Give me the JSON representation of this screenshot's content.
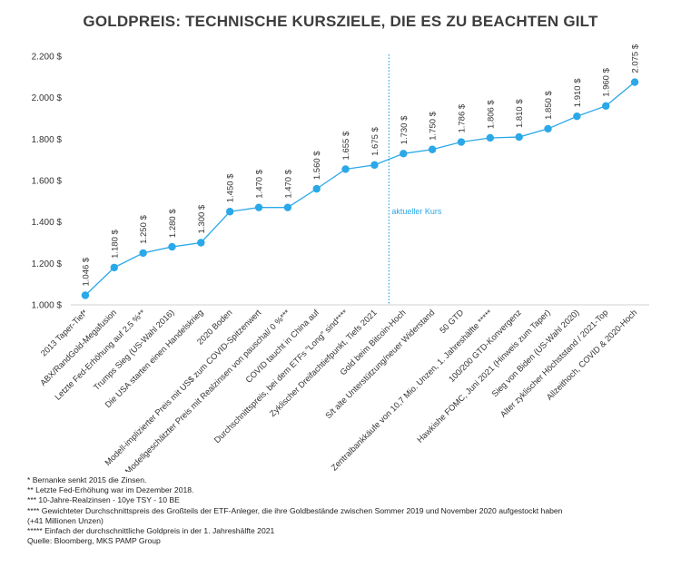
{
  "chart_data": {
    "type": "line",
    "title": "GOLDPREIS: TECHNISCHE KURSZIELE, DIE ES ZU BEACHTEN GILT",
    "xlabel": "",
    "ylabel": "",
    "ylim": [
      1000,
      2200
    ],
    "yticks": [
      1000,
      1200,
      1400,
      1600,
      1800,
      2000,
      2200
    ],
    "ytick_labels": [
      "1.000 $",
      "1.200 $",
      "1.400 $",
      "1.600 $",
      "1.800 $",
      "2.000 $",
      "2.200 $"
    ],
    "grid": false,
    "line_color": "#2aa8e8",
    "categories": [
      "2013 Taper-Tief*",
      "ABX/RandGold-Megafusion",
      "Letzte Fed-Erhöhung auf 2,5 %**",
      "Trumps Sieg (US-Wahl 2016)",
      "Die USA starten einen Handelskrieg",
      "2020 Boden",
      "Modell-implizierter Preis mit US$ zum COVID-Spitzenwert",
      "Modellgeschätzter Preis mit Realzinsen von pauschal/ 0 %***",
      "COVID taucht in China auf",
      "Durchschnittspreis, bei dem ETFs \"Long\" sind****",
      "Zyklischer Dreifachtiefpunkt, Tiefs 2021",
      "Gold beim Bitcoin-Hoch",
      "S/t alte Unterstützung/neuer Widerstand",
      "50 GTD",
      "Zentralbankkäufe von 10,7 Mio. Unzen, 1. Jahreshälfte *****",
      "100/200 GTD-Konvergenz",
      "Hawkishe FOMC, Juni 2021 (Hinweis zum Taper)",
      "Sieg von Biden (US-Wahl 2020)",
      "Alter zyklischer Höchststand / 2021-Top",
      "Allzeithoch, COVID & 2020-Hoch"
    ],
    "values": [
      1046,
      1180,
      1250,
      1280,
      1300,
      1450,
      1470,
      1470,
      1560,
      1655,
      1675,
      1730,
      1750,
      1786,
      1806,
      1810,
      1850,
      1910,
      1960,
      2075
    ],
    "data_labels": [
      "1.046 $",
      "1.180 $",
      "1.250 $",
      "1.280 $",
      "1.300 $",
      "1.450 $",
      "1.470 $",
      "1.470 $",
      "1.560 $",
      "1.655 $",
      "1.675 $",
      "1.730 $",
      "1.750 $",
      "1.786 $",
      "1.806 $",
      "1.810 $",
      "1.850 $",
      "1.910 $",
      "1.960 $",
      "2.075 $"
    ],
    "annotations": [
      {
        "text": "aktueller Kurs",
        "between_categories": [
          10,
          11
        ],
        "color": "#2aa8e8",
        "style": "dotted vertical line"
      }
    ]
  },
  "footnotes": [
    "* Bernanke senkt 2015 die Zinsen.",
    "** Letzte Fed-Erhöhung war im Dezember 2018.",
    "*** 10-Jahre-Realzinsen - 10ye TSY - 10 BE",
    "**** Gewichteter Durchschnittspreis des Großteils der ETF-Anleger, die ihre Goldbestände zwischen Sommer 2019 und November 2020 aufgestockt haben",
    "(+41 Millionen Unzen)",
    "***** Einfach der durchschnittliche Goldpreis in der 1. Jahreshälfte 2021",
    "Quelle: Bloomberg, MKS PAMP Group"
  ]
}
